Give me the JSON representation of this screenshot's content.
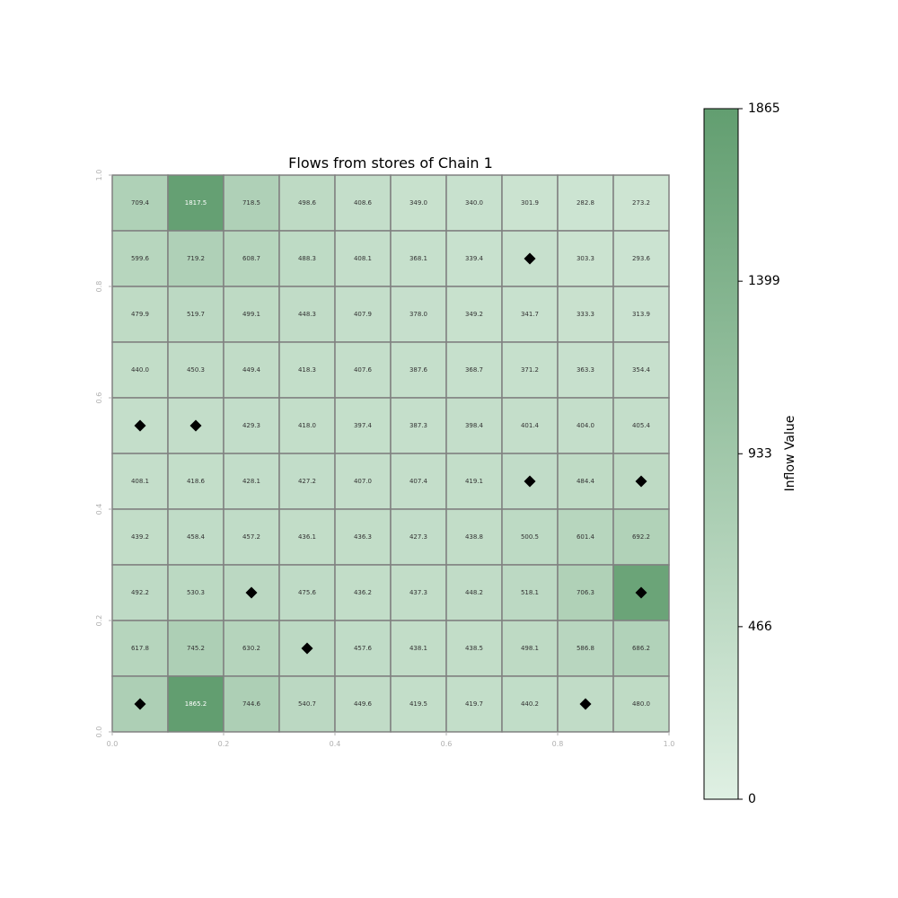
{
  "chart_data": {
    "type": "heatmap",
    "title": "Flows from stores of Chain 1",
    "rows_top_to_bottom": [
      [
        709.4,
        1817.5,
        718.5,
        498.6,
        408.6,
        349.0,
        340.0,
        301.9,
        282.8,
        273.2
      ],
      [
        599.6,
        719.2,
        608.7,
        488.3,
        408.1,
        368.1,
        339.4,
        360.3,
        303.3,
        293.6
      ],
      [
        479.9,
        519.7,
        499.1,
        448.3,
        407.9,
        378.0,
        349.2,
        341.7,
        333.3,
        313.9
      ],
      [
        440.0,
        450.3,
        449.4,
        418.3,
        407.6,
        387.6,
        368.7,
        371.2,
        363.3,
        354.4
      ],
      [
        402.3,
        421.1,
        429.3,
        418.0,
        397.4,
        387.3,
        398.4,
        401.4,
        404.0,
        405.4
      ],
      [
        408.1,
        418.6,
        428.1,
        427.2,
        407.0,
        407.4,
        419.1,
        445.1,
        484.4,
        495.7
      ],
      [
        439.2,
        458.4,
        457.2,
        436.1,
        436.3,
        427.3,
        438.8,
        500.5,
        601.4,
        692.2
      ],
      [
        492.2,
        530.3,
        540.5,
        475.6,
        436.2,
        437.3,
        448.2,
        518.1,
        706.3,
        1730.5
      ],
      [
        617.8,
        745.2,
        630.2,
        520.7,
        457.6,
        438.1,
        438.5,
        498.1,
        586.8,
        686.2
      ],
      [
        740.6,
        1865.2,
        744.6,
        540.7,
        449.6,
        419.5,
        419.7,
        440.2,
        450.8,
        480.0
      ]
    ],
    "value_labels_top_to_bottom": [
      [
        "709.4",
        "1817.5",
        "718.5",
        "498.6",
        "408.6",
        "349.0",
        "340.0",
        "301.9",
        "282.8",
        "273.2"
      ],
      [
        "599.6",
        "719.2",
        "608.7",
        "488.3",
        "408.1",
        "368.1",
        "339.4",
        "",
        "303.3",
        "293.6"
      ],
      [
        "479.9",
        "519.7",
        "499.1",
        "448.3",
        "407.9",
        "378.0",
        "349.2",
        "341.7",
        "333.3",
        "313.9"
      ],
      [
        "440.0",
        "450.3",
        "449.4",
        "418.3",
        "407.6",
        "387.6",
        "368.7",
        "371.2",
        "363.3",
        "354.4"
      ],
      [
        "",
        "",
        "429.3",
        "418.0",
        "397.4",
        "387.3",
        "398.4",
        "401.4",
        "404.0",
        "405.4"
      ],
      [
        "408.1",
        "418.6",
        "428.1",
        "427.2",
        "407.0",
        "407.4",
        "419.1",
        "",
        "484.4",
        ""
      ],
      [
        "439.2",
        "458.4",
        "457.2",
        "436.1",
        "436.3",
        "427.3",
        "438.8",
        "500.5",
        "601.4",
        "692.2"
      ],
      [
        "492.2",
        "530.3",
        "",
        "475.6",
        "436.2",
        "437.3",
        "448.2",
        "518.1",
        "706.3",
        ""
      ],
      [
        "617.8",
        "745.2",
        "630.2",
        "",
        "457.6",
        "438.1",
        "438.5",
        "498.1",
        "586.8",
        "686.2"
      ],
      [
        "",
        "1865.2",
        "744.6",
        "540.7",
        "449.6",
        "419.5",
        "419.7",
        "440.2",
        "",
        "480.0"
      ]
    ],
    "stores": [
      {
        "x": 0.75,
        "y": 0.85
      },
      {
        "x": 0.05,
        "y": 0.55
      },
      {
        "x": 0.15,
        "y": 0.55
      },
      {
        "x": 0.75,
        "y": 0.45
      },
      {
        "x": 0.95,
        "y": 0.45
      },
      {
        "x": 0.25,
        "y": 0.25
      },
      {
        "x": 0.95,
        "y": 0.25
      },
      {
        "x": 0.35,
        "y": 0.15
      },
      {
        "x": 0.05,
        "y": 0.05
      },
      {
        "x": 0.85,
        "y": 0.05
      }
    ],
    "xlim": [
      0.0,
      1.0
    ],
    "ylim": [
      0.0,
      1.0
    ],
    "x_ticks": [
      "0.0",
      "0.2",
      "0.4",
      "0.6",
      "0.8",
      "1.0"
    ],
    "y_ticks": [
      "0.0",
      "0.2",
      "0.4",
      "0.6",
      "0.8",
      "1.0"
    ],
    "colorbar": {
      "label": "Inflow Value",
      "min": 0,
      "max": 1865,
      "ticks": [
        "0",
        "466",
        "933",
        "1399",
        "1865"
      ],
      "color_low": "#dff0e3",
      "color_high": "#629e70"
    },
    "grid": true,
    "colors": {
      "cell_border": "#808080",
      "marker": "#000000",
      "label_dark": "#333333",
      "label_light": "#ffffff"
    }
  }
}
